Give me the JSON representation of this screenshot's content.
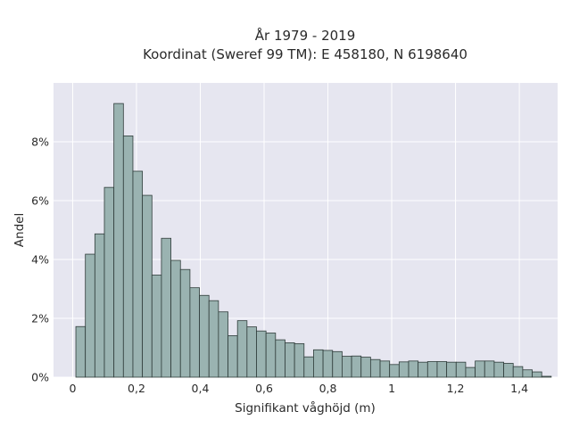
{
  "chart_data": {
    "type": "bar",
    "title": "År 1979 - 2019",
    "subtitle": "Koordinat (Sweref 99 TM): E 458180, N 6198640",
    "xlabel": "Signifikant våghöjd (m)",
    "ylabel": "Andel",
    "xlim": [
      -0.06,
      1.52
    ],
    "ylim": [
      0,
      0.1
    ],
    "x_ticks": [
      0,
      0.2,
      0.4,
      0.6,
      0.8,
      1.0,
      1.2,
      1.4
    ],
    "x_tick_labels": [
      "0",
      "0,2",
      "0,4",
      "0,6",
      "0,8",
      "1",
      "1,2",
      "1,4"
    ],
    "y_ticks": [
      0,
      0.02,
      0.04,
      0.06,
      0.08
    ],
    "y_tick_labels": [
      "0%",
      "2%",
      "4%",
      "6%",
      "8%"
    ],
    "grid": true,
    "bin_start": 0.01,
    "bin_width": 0.0298,
    "values": [
      0.0172,
      0.0418,
      0.0487,
      0.0645,
      0.093,
      0.082,
      0.07,
      0.0618,
      0.0347,
      0.0472,
      0.0397,
      0.0366,
      0.0304,
      0.0278,
      0.026,
      0.0222,
      0.0141,
      0.0192,
      0.0171,
      0.0157,
      0.015,
      0.0127,
      0.0117,
      0.0114,
      0.0069,
      0.0093,
      0.0091,
      0.0087,
      0.0071,
      0.0072,
      0.0068,
      0.006,
      0.0055,
      0.0043,
      0.0052,
      0.0055,
      0.0051,
      0.0053,
      0.0053,
      0.0051,
      0.0051,
      0.0033,
      0.0055,
      0.0055,
      0.0051,
      0.0047,
      0.0036,
      0.0025,
      0.0018,
      0.0003
    ],
    "colors": {
      "bar_fill": "#9ab3b1",
      "bar_stroke": "#2f3c3a",
      "plot_bg": "#e6e6f0",
      "grid": "#ffffff"
    }
  }
}
